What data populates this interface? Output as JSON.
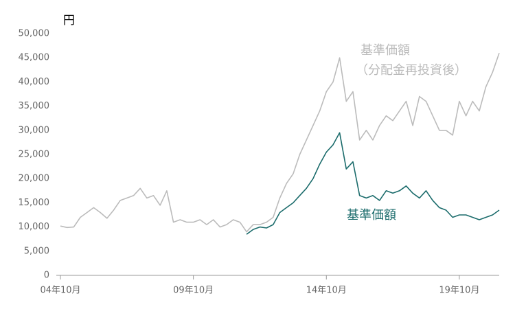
{
  "chart_data": {
    "type": "line",
    "ylabel": "円",
    "categories": [
      "04年10月",
      null,
      null,
      null,
      null,
      null,
      null,
      null,
      null,
      null,
      null,
      null,
      null,
      null,
      null,
      null,
      null,
      null,
      null,
      null,
      "09年10月",
      null,
      null,
      null,
      null,
      null,
      null,
      null,
      null,
      null,
      null,
      null,
      null,
      null,
      null,
      null,
      null,
      null,
      null,
      null,
      "14年10月",
      null,
      null,
      null,
      null,
      null,
      null,
      null,
      null,
      null,
      null,
      null,
      null,
      null,
      null,
      null,
      null,
      null,
      null,
      null,
      "19年10月",
      null,
      null,
      null,
      null,
      null,
      null
    ],
    "series": [
      {
        "name": "基準価額",
        "note": "（分配金再投資後）",
        "color": "#bbbbbb",
        "values": [
          10200,
          9900,
          10000,
          12000,
          13000,
          14000,
          13000,
          11800,
          13500,
          15500,
          16000,
          16500,
          18000,
          16000,
          16500,
          14500,
          17500,
          11000,
          11500,
          11000,
          11000,
          11500,
          10500,
          11500,
          10000,
          10500,
          11500,
          11000,
          9000,
          10500,
          10500,
          11000,
          12000,
          16000,
          19000,
          21000,
          25000,
          28000,
          31000,
          34000,
          38000,
          40000,
          45000,
          36000,
          38000,
          28000,
          30000,
          28000,
          31000,
          33000,
          32000,
          34000,
          36000,
          31000,
          37000,
          36000,
          33000,
          30000,
          30000,
          29000,
          36000,
          33000,
          36000,
          34000,
          39000,
          42000,
          46000
        ]
      },
      {
        "name": "基準価額",
        "color": "#1a6b6b",
        "values": [
          null,
          null,
          null,
          null,
          null,
          null,
          null,
          null,
          null,
          null,
          null,
          null,
          null,
          null,
          null,
          null,
          null,
          null,
          null,
          null,
          null,
          null,
          null,
          null,
          null,
          null,
          null,
          null,
          8500,
          9500,
          10000,
          9800,
          10500,
          13000,
          14000,
          15000,
          16500,
          18000,
          20000,
          23000,
          25500,
          27000,
          29500,
          22000,
          23500,
          16500,
          16000,
          16500,
          15500,
          17500,
          17000,
          17500,
          18500,
          17000,
          16000,
          17500,
          15500,
          14000,
          13500,
          12000,
          12500,
          12500,
          12000,
          11500,
          12000,
          12500,
          13500
        ]
      }
    ],
    "ylim": [
      0,
      50000
    ],
    "yticks": [
      0,
      {
        "value": 5000,
        "label": "5,000"
      },
      {
        "value": 10000,
        "label": "10,000"
      },
      {
        "value": 15000,
        "label": "15,000"
      },
      {
        "value": 20000,
        "label": "20,000"
      },
      {
        "value": 25000,
        "label": "25,000"
      },
      {
        "value": 30000,
        "label": "30,000"
      },
      {
        "value": 35000,
        "label": "35,000"
      },
      {
        "value": 40000,
        "label": "40,000"
      },
      {
        "value": 45000,
        "label": "45,000"
      },
      {
        "value": 50000,
        "label": "50,000"
      }
    ],
    "grid": false
  }
}
